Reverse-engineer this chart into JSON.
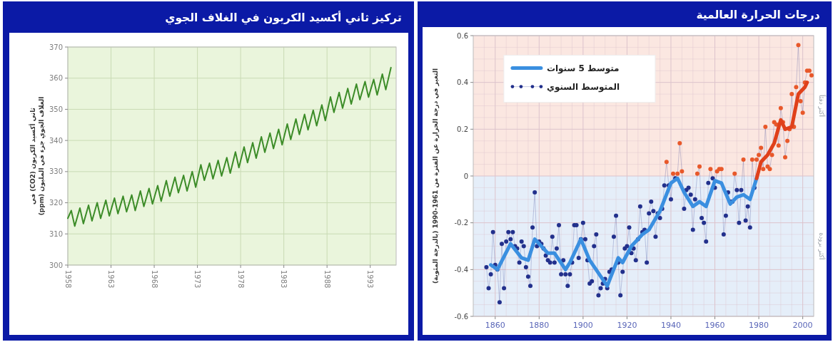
{
  "chart_data": [
    {
      "type": "line",
      "title": "تركيز ثاني أكسيد الكربون في الغلاف الجوي",
      "ylabel": "ثاني أكسيد الكربون (CO2) في الغلاف الجوي جزء في المليون (ppm)",
      "series": [
        {
          "color": "#3c8c28",
          "x": [
            1958,
            1958.4,
            1958.8,
            1959.4,
            1959.8,
            1960.4,
            1960.8,
            1961.4,
            1961.8,
            1962.4,
            1962.8,
            1963.4,
            1963.8,
            1964.4,
            1964.8,
            1965.4,
            1965.8,
            1966.4,
            1966.8,
            1967.4,
            1967.8,
            1968.4,
            1968.8,
            1969.4,
            1969.8,
            1970.4,
            1970.8,
            1971.4,
            1971.8,
            1972.4,
            1972.8,
            1973.4,
            1973.8,
            1974.4,
            1974.8,
            1975.4,
            1975.8,
            1976.4,
            1976.8,
            1977.4,
            1977.8,
            1978.4,
            1978.8,
            1979.4,
            1979.8,
            1980.4,
            1980.8,
            1981.4,
            1981.8,
            1982.4,
            1982.8,
            1983.4,
            1983.8,
            1984.4,
            1984.8,
            1985.4,
            1985.8,
            1986.4,
            1986.8,
            1987.4,
            1987.8,
            1988.4,
            1988.8,
            1989.4,
            1989.8,
            1990.4,
            1990.8,
            1991.4,
            1991.8,
            1992.4,
            1992.8,
            1993.4,
            1993.8,
            1994.4,
            1994.8,
            1995.4
          ],
          "values": [
            315,
            317.5,
            312.5,
            318.3,
            313.3,
            319.2,
            314.2,
            320,
            315,
            320.8,
            315.8,
            321.5,
            316.5,
            322.1,
            317.1,
            322.5,
            317.5,
            323.8,
            318.8,
            324.6,
            319.6,
            325.5,
            320.5,
            327.1,
            322.1,
            328.2,
            323.2,
            328.8,
            323.8,
            330,
            325,
            332.2,
            327.2,
            332.7,
            327.7,
            333.6,
            328.6,
            334.5,
            329.5,
            336.3,
            331.3,
            337.9,
            332.9,
            339.3,
            334.3,
            341.2,
            336.2,
            342.4,
            337.4,
            343.6,
            338.6,
            345.3,
            340.3,
            346.9,
            341.9,
            348.4,
            343.4,
            349.7,
            344.7,
            351.4,
            346.4,
            354,
            349,
            355.4,
            350.4,
            356.7,
            351.7,
            358.1,
            353.1,
            358.9,
            353.9,
            359.6,
            354.6,
            361.3,
            356.3,
            363.4
          ]
        }
      ],
      "xlim": [
        1958,
        1996
      ],
      "ylim": [
        300,
        370
      ],
      "xticks": [
        1958,
        1963,
        1968,
        1973,
        1978,
        1983,
        1988,
        1993
      ],
      "yticks": [
        300,
        310,
        320,
        330,
        340,
        350,
        360,
        370
      ],
      "grid": true
    },
    {
      "type": "line",
      "title": "درجات الحرارة العالمية",
      "ylabel": "التغير في درجة الحرارة عن الفترة من 1961-1990 (بالدرجة المئوية)",
      "series": [
        {
          "name": "المتوسط السنوي",
          "color": "#22308c",
          "marker": "circle",
          "x": [
            1856,
            1857,
            1858,
            1859,
            1860,
            1861,
            1862,
            1863,
            1864,
            1865,
            1866,
            1867,
            1868,
            1869,
            1870,
            1871,
            1872,
            1873,
            1874,
            1875,
            1876,
            1877,
            1878,
            1879,
            1880,
            1881,
            1882,
            1883,
            1884,
            1885,
            1886,
            1887,
            1888,
            1889,
            1890,
            1891,
            1892,
            1893,
            1894,
            1895,
            1896,
            1897,
            1898,
            1899,
            1900,
            1901,
            1902,
            1903,
            1904,
            1905,
            1906,
            1907,
            1908,
            1909,
            1910,
            1911,
            1912,
            1913,
            1914,
            1915,
            1916,
            1917,
            1918,
            1919,
            1920,
            1921,
            1922,
            1923,
            1924,
            1925,
            1926,
            1927,
            1928,
            1929,
            1930,
            1931,
            1932,
            1933,
            1934,
            1935,
            1936,
            1937,
            1938,
            1939,
            1940,
            1941,
            1942,
            1943,
            1944,
            1945,
            1946,
            1947,
            1948,
            1949,
            1950,
            1951,
            1952,
            1953,
            1954,
            1955,
            1956,
            1957,
            1958,
            1959,
            1960,
            1961,
            1962,
            1963,
            1964,
            1965,
            1966,
            1967,
            1968,
            1969,
            1970,
            1971,
            1972,
            1973,
            1974,
            1975,
            1976,
            1977,
            1978,
            1979,
            1980,
            1981,
            1982,
            1983,
            1984,
            1985,
            1986,
            1987,
            1988,
            1989,
            1990,
            1991,
            1992,
            1993,
            1994,
            1995,
            1996,
            1997,
            1998,
            1999,
            2000,
            2001,
            2002,
            2003,
            2004
          ],
          "values": [
            -0.39,
            -0.48,
            -0.42,
            -0.24,
            -0.38,
            -0.4,
            -0.54,
            -0.29,
            -0.48,
            -0.28,
            -0.24,
            -0.27,
            -0.24,
            -0.3,
            -0.31,
            -0.37,
            -0.28,
            -0.3,
            -0.39,
            -0.43,
            -0.47,
            -0.22,
            -0.07,
            -0.3,
            -0.28,
            -0.29,
            -0.31,
            -0.34,
            -0.36,
            -0.37,
            -0.26,
            -0.37,
            -0.31,
            -0.21,
            -0.42,
            -0.36,
            -0.42,
            -0.47,
            -0.42,
            -0.37,
            -0.21,
            -0.21,
            -0.35,
            -0.27,
            -0.2,
            -0.27,
            -0.36,
            -0.46,
            -0.45,
            -0.3,
            -0.25,
            -0.51,
            -0.48,
            -0.46,
            -0.44,
            -0.48,
            -0.41,
            -0.4,
            -0.26,
            -0.17,
            -0.37,
            -0.51,
            -0.41,
            -0.31,
            -0.3,
            -0.22,
            -0.33,
            -0.31,
            -0.36,
            -0.27,
            -0.13,
            -0.24,
            -0.23,
            -0.37,
            -0.16,
            -0.11,
            -0.15,
            -0.26,
            -0.16,
            -0.18,
            -0.14,
            -0.04,
            0.06,
            -0.04,
            -0.1,
            0.01,
            -0.01,
            0.01,
            0.14,
            0.02,
            -0.14,
            -0.06,
            -0.05,
            -0.08,
            -0.23,
            -0.1,
            0.01,
            0.04,
            -0.18,
            -0.2,
            -0.28,
            -0.03,
            0.03,
            -0.01,
            -0.05,
            0.02,
            0.03,
            0.03,
            -0.25,
            -0.17,
            -0.07,
            -0.11,
            -0.11,
            0.01,
            -0.06,
            -0.2,
            -0.06,
            0.07,
            -0.19,
            -0.13,
            -0.22,
            0.07,
            -0.05,
            0.07,
            0.09,
            0.12,
            0.03,
            0.21,
            0.04,
            0.03,
            0.09,
            0.23,
            0.22,
            0.13,
            0.29,
            0.23,
            0.08,
            0.15,
            0.2,
            0.35,
            0.21,
            0.38,
            0.56,
            0.32,
            0.27,
            0.4,
            0.45,
            0.45,
            0.43
          ],
          "colors": [
            "#22308c",
            "#22308c",
            "#22308c",
            "#22308c",
            "#22308c",
            "#22308c",
            "#22308c",
            "#22308c",
            "#22308c",
            "#22308c",
            "#22308c",
            "#22308c",
            "#22308c",
            "#22308c",
            "#22308c",
            "#22308c",
            "#22308c",
            "#22308c",
            "#22308c",
            "#22308c",
            "#22308c",
            "#22308c",
            "#22308c",
            "#22308c",
            "#22308c",
            "#22308c",
            "#22308c",
            "#22308c",
            "#22308c",
            "#22308c",
            "#22308c",
            "#22308c",
            "#22308c",
            "#22308c",
            "#22308c",
            "#22308c",
            "#22308c",
            "#22308c",
            "#22308c",
            "#22308c",
            "#22308c",
            "#22308c",
            "#22308c",
            "#22308c",
            "#22308c",
            "#22308c",
            "#22308c",
            "#22308c",
            "#22308c",
            "#22308c",
            "#22308c",
            "#22308c",
            "#22308c",
            "#22308c",
            "#22308c",
            "#22308c",
            "#22308c",
            "#22308c",
            "#22308c",
            "#22308c",
            "#22308c",
            "#22308c",
            "#22308c",
            "#22308c",
            "#22308c",
            "#22308c",
            "#22308c",
            "#22308c",
            "#22308c",
            "#22308c",
            "#22308c",
            "#22308c",
            "#22308c",
            "#22308c",
            "#22308c",
            "#22308c",
            "#22308c",
            "#22308c",
            "#22308c",
            "#22308c",
            "#22308c",
            "#22308c",
            "#e8582a",
            "#22308c",
            "#22308c",
            "#e8582a",
            "#22308c",
            "#e8582a",
            "#e8582a",
            "#e8582a",
            "#22308c",
            "#22308c",
            "#22308c",
            "#22308c",
            "#22308c",
            "#22308c",
            "#e8582a",
            "#e8582a",
            "#22308c",
            "#22308c",
            "#22308c",
            "#22308c",
            "#e8582a",
            "#22308c",
            "#22308c",
            "#e8582a",
            "#e8582a",
            "#e8582a",
            "#22308c",
            "#22308c",
            "#22308c",
            "#22308c",
            "#22308c",
            "#e8582a",
            "#22308c",
            "#22308c",
            "#22308c",
            "#e8582a",
            "#22308c",
            "#22308c",
            "#22308c",
            "#e8582a",
            "#22308c",
            "#e8582a",
            "#e8582a",
            "#e8582a",
            "#e8582a",
            "#e8582a",
            "#e8582a",
            "#e8582a",
            "#e8582a",
            "#e8582a",
            "#e8582a",
            "#e8582a",
            "#e8582a",
            "#e8582a",
            "#e8582a",
            "#e8582a",
            "#e8582a",
            "#e8582a",
            "#e8582a",
            "#e8582a",
            "#e8582a",
            "#e8582a",
            "#e8582a",
            "#e8582a",
            "#e8582a",
            "#e8582a",
            "#e8582a"
          ]
        },
        {
          "name": "متوسط 5 سنوات",
          "color": "#3a8fe0",
          "x": [
            1858,
            1861,
            1867,
            1872,
            1875,
            1878,
            1881,
            1884,
            1887,
            1892,
            1894,
            1899,
            1903,
            1911,
            1916,
            1918,
            1922,
            1927,
            1930,
            1935,
            1940,
            1943,
            1946,
            1950,
            1953,
            1956,
            1960,
            1963,
            1967,
            1970,
            1973,
            1976,
            1979
          ],
          "values": [
            -0.38,
            -0.4,
            -0.29,
            -0.35,
            -0.36,
            -0.27,
            -0.3,
            -0.33,
            -0.33,
            -0.4,
            -0.37,
            -0.27,
            -0.36,
            -0.47,
            -0.35,
            -0.37,
            -0.3,
            -0.25,
            -0.23,
            -0.15,
            -0.03,
            -0.01,
            -0.07,
            -0.13,
            -0.11,
            -0.13,
            -0.02,
            -0.03,
            -0.12,
            -0.09,
            -0.08,
            -0.1,
            -0.01
          ]
        },
        {
          "color": "#e0401a",
          "x": [
            1979,
            1981,
            1984,
            1987,
            1990,
            1992,
            1995,
            1998,
            2001,
            2002
          ],
          "values": [
            -0.01,
            0.06,
            0.09,
            0.14,
            0.24,
            0.2,
            0.21,
            0.35,
            0.38,
            0.4
          ]
        }
      ],
      "xlim": [
        1850,
        2005
      ],
      "ylim": [
        -0.6,
        0.6
      ],
      "xticks": [
        1860,
        1880,
        1900,
        1920,
        1940,
        1960,
        1980,
        2000
      ],
      "yticks": [
        -0.6,
        -0.4,
        -0.2,
        0,
        0.2,
        0.4,
        0.6
      ],
      "bands": [
        {
          "axis": "y",
          "from": 0,
          "to": 0.6,
          "label": "أكثر دفئاً",
          "color": "#fbe7e1"
        },
        {
          "axis": "y",
          "from": -0.6,
          "to": 0,
          "label": "أكثر برودة",
          "color": "#e5eef9"
        }
      ],
      "grid": true,
      "legend": "top left"
    }
  ]
}
